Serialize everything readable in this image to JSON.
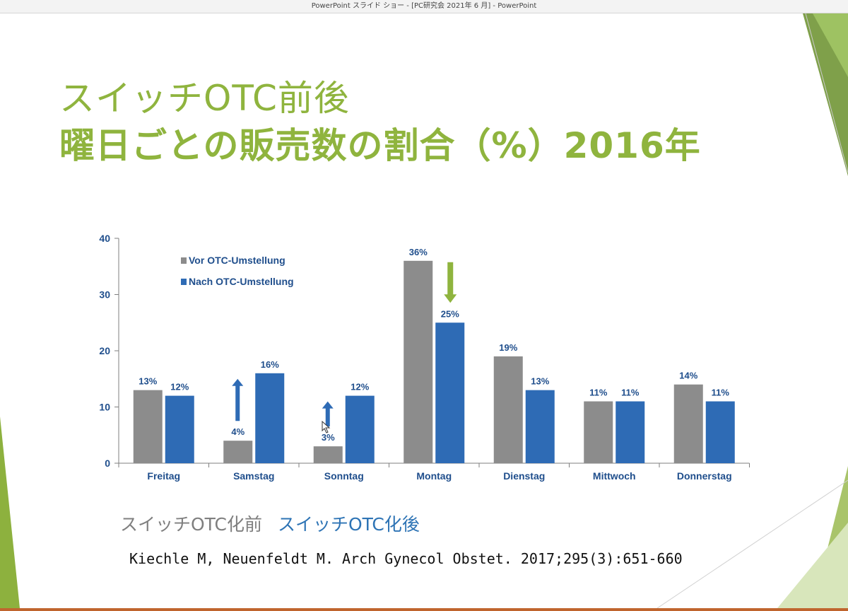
{
  "window": {
    "title": "PowerPoint スライド ショー - [PC研究会 2021年 6 月] - PowerPoint"
  },
  "slide": {
    "title_line1": "スイッチOTC前後",
    "title_line2": "曜日ごとの販売数の割合（%）2016年",
    "caption_before": "スイッチOTC化前",
    "caption_after": "スイッチOTC化後",
    "citation": "Kiechle M, Neuenfeldt M. Arch Gynecol Obstet. 2017;295(3):651-660"
  },
  "colors": {
    "title": "#8fb43e",
    "series_before": "#8c8c8c",
    "series_after": "#2e6bb5",
    "label_text": "#1f4e8c",
    "arrow_up": "#2e6bb5",
    "arrow_down": "#8fb43e"
  },
  "chart_data": {
    "type": "bar",
    "categories": [
      "Freitag",
      "Samstag",
      "Sonntag",
      "Montag",
      "Dienstag",
      "Mittwoch",
      "Donnerstag"
    ],
    "series": [
      {
        "name": "Vor OTC-Umstellung",
        "values": [
          13,
          4,
          3,
          36,
          19,
          11,
          14
        ],
        "labels": [
          "13%",
          "4%",
          "3%",
          "36%",
          "19%",
          "11%",
          "14%"
        ]
      },
      {
        "name": "Nach OTC-Umstellung",
        "values": [
          12,
          16,
          12,
          25,
          13,
          11,
          11
        ],
        "labels": [
          "12%",
          "16%",
          "12%",
          "25%",
          "13%",
          "11%",
          "11%"
        ]
      }
    ],
    "ylim": [
      0,
      40
    ],
    "yticks": [
      "0",
      "10",
      "20",
      "30",
      "40"
    ],
    "grid": false,
    "legend_position": "top-left",
    "annotations": [
      {
        "type": "arrow-up",
        "category": "Samstag"
      },
      {
        "type": "arrow-up",
        "category": "Sonntag"
      },
      {
        "type": "arrow-down",
        "category": "Montag"
      }
    ]
  }
}
